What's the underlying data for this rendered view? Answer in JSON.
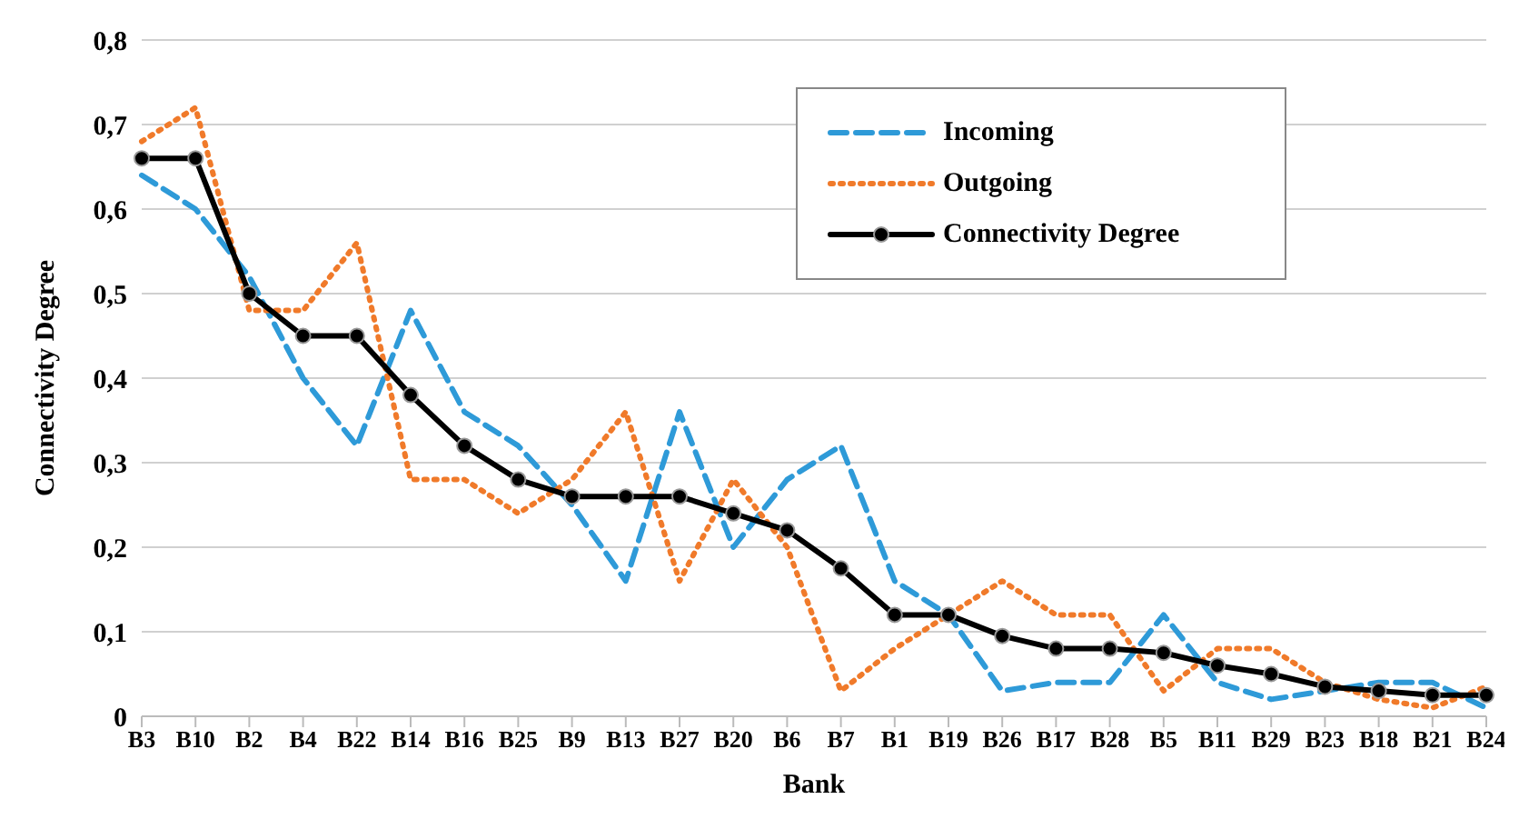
{
  "chart_data": {
    "type": "line",
    "xlabel": "Bank",
    "ylabel": "Connectivity Degree",
    "categories": [
      "B3",
      "B10",
      "B2",
      "B4",
      "B22",
      "B14",
      "B16",
      "B25",
      "B9",
      "B13",
      "B27",
      "B20",
      "B6",
      "B7",
      "B1",
      "B19",
      "B26",
      "B17",
      "B28",
      "B5",
      "B11",
      "B29",
      "B23",
      "B18",
      "B21",
      "B24"
    ],
    "series": [
      {
        "name": "Incoming",
        "color": "#2e9ad8",
        "line_style": "dashed",
        "marker": "none",
        "values": [
          0.64,
          0.6,
          0.52,
          0.4,
          0.32,
          0.48,
          0.36,
          0.32,
          0.25,
          0.16,
          0.36,
          0.2,
          0.28,
          0.32,
          0.16,
          0.12,
          0.03,
          0.04,
          0.04,
          0.12,
          0.04,
          0.02,
          0.03,
          0.04,
          0.04,
          0.01
        ]
      },
      {
        "name": "Outgoing",
        "color": "#f07a2a",
        "line_style": "dotted",
        "marker": "none",
        "values": [
          0.68,
          0.72,
          0.48,
          0.48,
          0.56,
          0.28,
          0.28,
          0.24,
          0.28,
          0.36,
          0.16,
          0.28,
          0.2,
          0.03,
          0.08,
          0.12,
          0.16,
          0.12,
          0.12,
          0.03,
          0.08,
          0.08,
          0.04,
          0.02,
          0.01,
          0.035
        ]
      },
      {
        "name": "Connectivity Degree",
        "color": "#000000",
        "line_style": "solid",
        "marker": "circle",
        "values": [
          0.66,
          0.66,
          0.5,
          0.45,
          0.45,
          0.38,
          0.32,
          0.28,
          0.26,
          0.26,
          0.26,
          0.24,
          0.22,
          0.175,
          0.12,
          0.12,
          0.095,
          0.08,
          0.08,
          0.075,
          0.06,
          0.05,
          0.035,
          0.03,
          0.025,
          0.025
        ]
      }
    ],
    "ylim": [
      0,
      0.8
    ],
    "yticks": [
      {
        "value": 0,
        "label": "0"
      },
      {
        "value": 0.1,
        "label": "0,1"
      },
      {
        "value": 0.2,
        "label": "0,2"
      },
      {
        "value": 0.3,
        "label": "0,3"
      },
      {
        "value": 0.4,
        "label": "0,4"
      },
      {
        "value": 0.5,
        "label": "0,5"
      },
      {
        "value": 0.6,
        "label": "0,6"
      },
      {
        "value": 0.7,
        "label": "0,7"
      },
      {
        "value": 0.8,
        "label": "0,8"
      }
    ],
    "grid": "y",
    "legend": "top right"
  }
}
